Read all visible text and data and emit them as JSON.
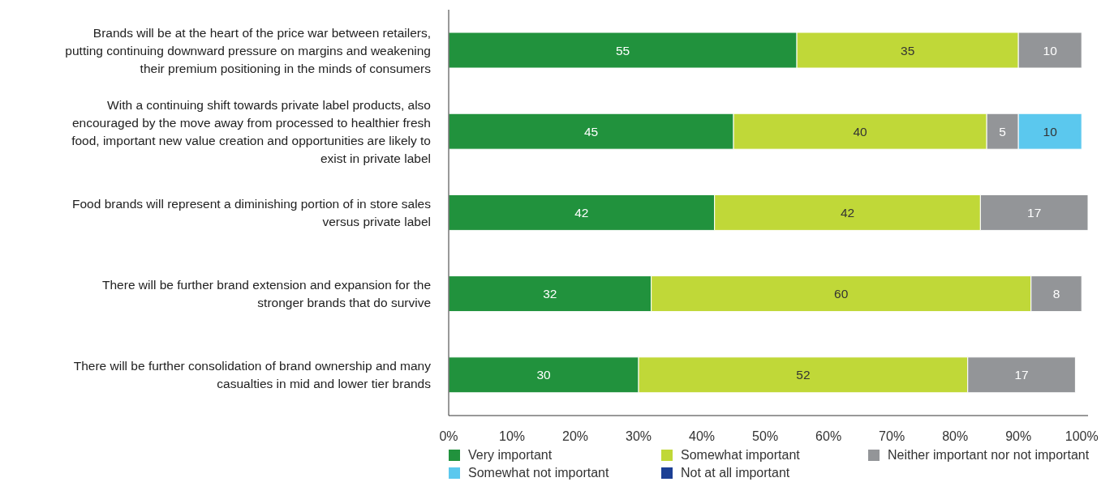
{
  "chart_data": {
    "type": "bar",
    "orientation": "horizontal",
    "stacked": true,
    "data_labels": true,
    "legend": "bottom",
    "grid": false,
    "categories": [
      "Brands will be at the heart of the price war between retailers, putting continuing downward pressure on margins and weakening their premium positioning in the minds of consumers",
      "With a continuing shift towards private label products, also encouraged by the move away from processed to healthier fresh food, important new value creation and opportunities are likely to exist in private label",
      "Food brands will represent a diminishing portion of in store sales versus private label",
      "There will be further brand extension and expansion for the stronger brands that do survive",
      "There will be further consolidation of brand ownership and many casualties in mid and lower tier brands"
    ],
    "series": [
      {
        "name": "Very important",
        "color": "#21923d",
        "values": [
          55,
          45,
          42,
          32,
          30
        ]
      },
      {
        "name": "Somewhat important",
        "color": "#c0d838",
        "values": [
          35,
          40,
          42,
          60,
          52
        ]
      },
      {
        "name": "Neither important nor not important",
        "color": "#939598",
        "values": [
          10,
          5,
          17,
          8,
          17
        ]
      },
      {
        "name": "Somewhat not important",
        "color": "#5bc8ee",
        "values": [
          null,
          10,
          null,
          null,
          null
        ]
      },
      {
        "name": "Not at all important",
        "color": "#1c3f94",
        "values": [
          null,
          null,
          null,
          null,
          null
        ]
      }
    ],
    "xlim": [
      0,
      101
    ],
    "xticks": [
      {
        "value": 0,
        "label": "0%"
      },
      {
        "value": 10,
        "label": "10%"
      },
      {
        "value": 20,
        "label": "20%"
      },
      {
        "value": 30,
        "label": "30%"
      },
      {
        "value": 40,
        "label": "40%"
      },
      {
        "value": 50,
        "label": "50%"
      },
      {
        "value": 60,
        "label": "60%"
      },
      {
        "value": 70,
        "label": "70%"
      },
      {
        "value": 80,
        "label": "80%"
      },
      {
        "value": 90,
        "label": "90%"
      },
      {
        "value": 100,
        "label": "100%"
      }
    ]
  }
}
